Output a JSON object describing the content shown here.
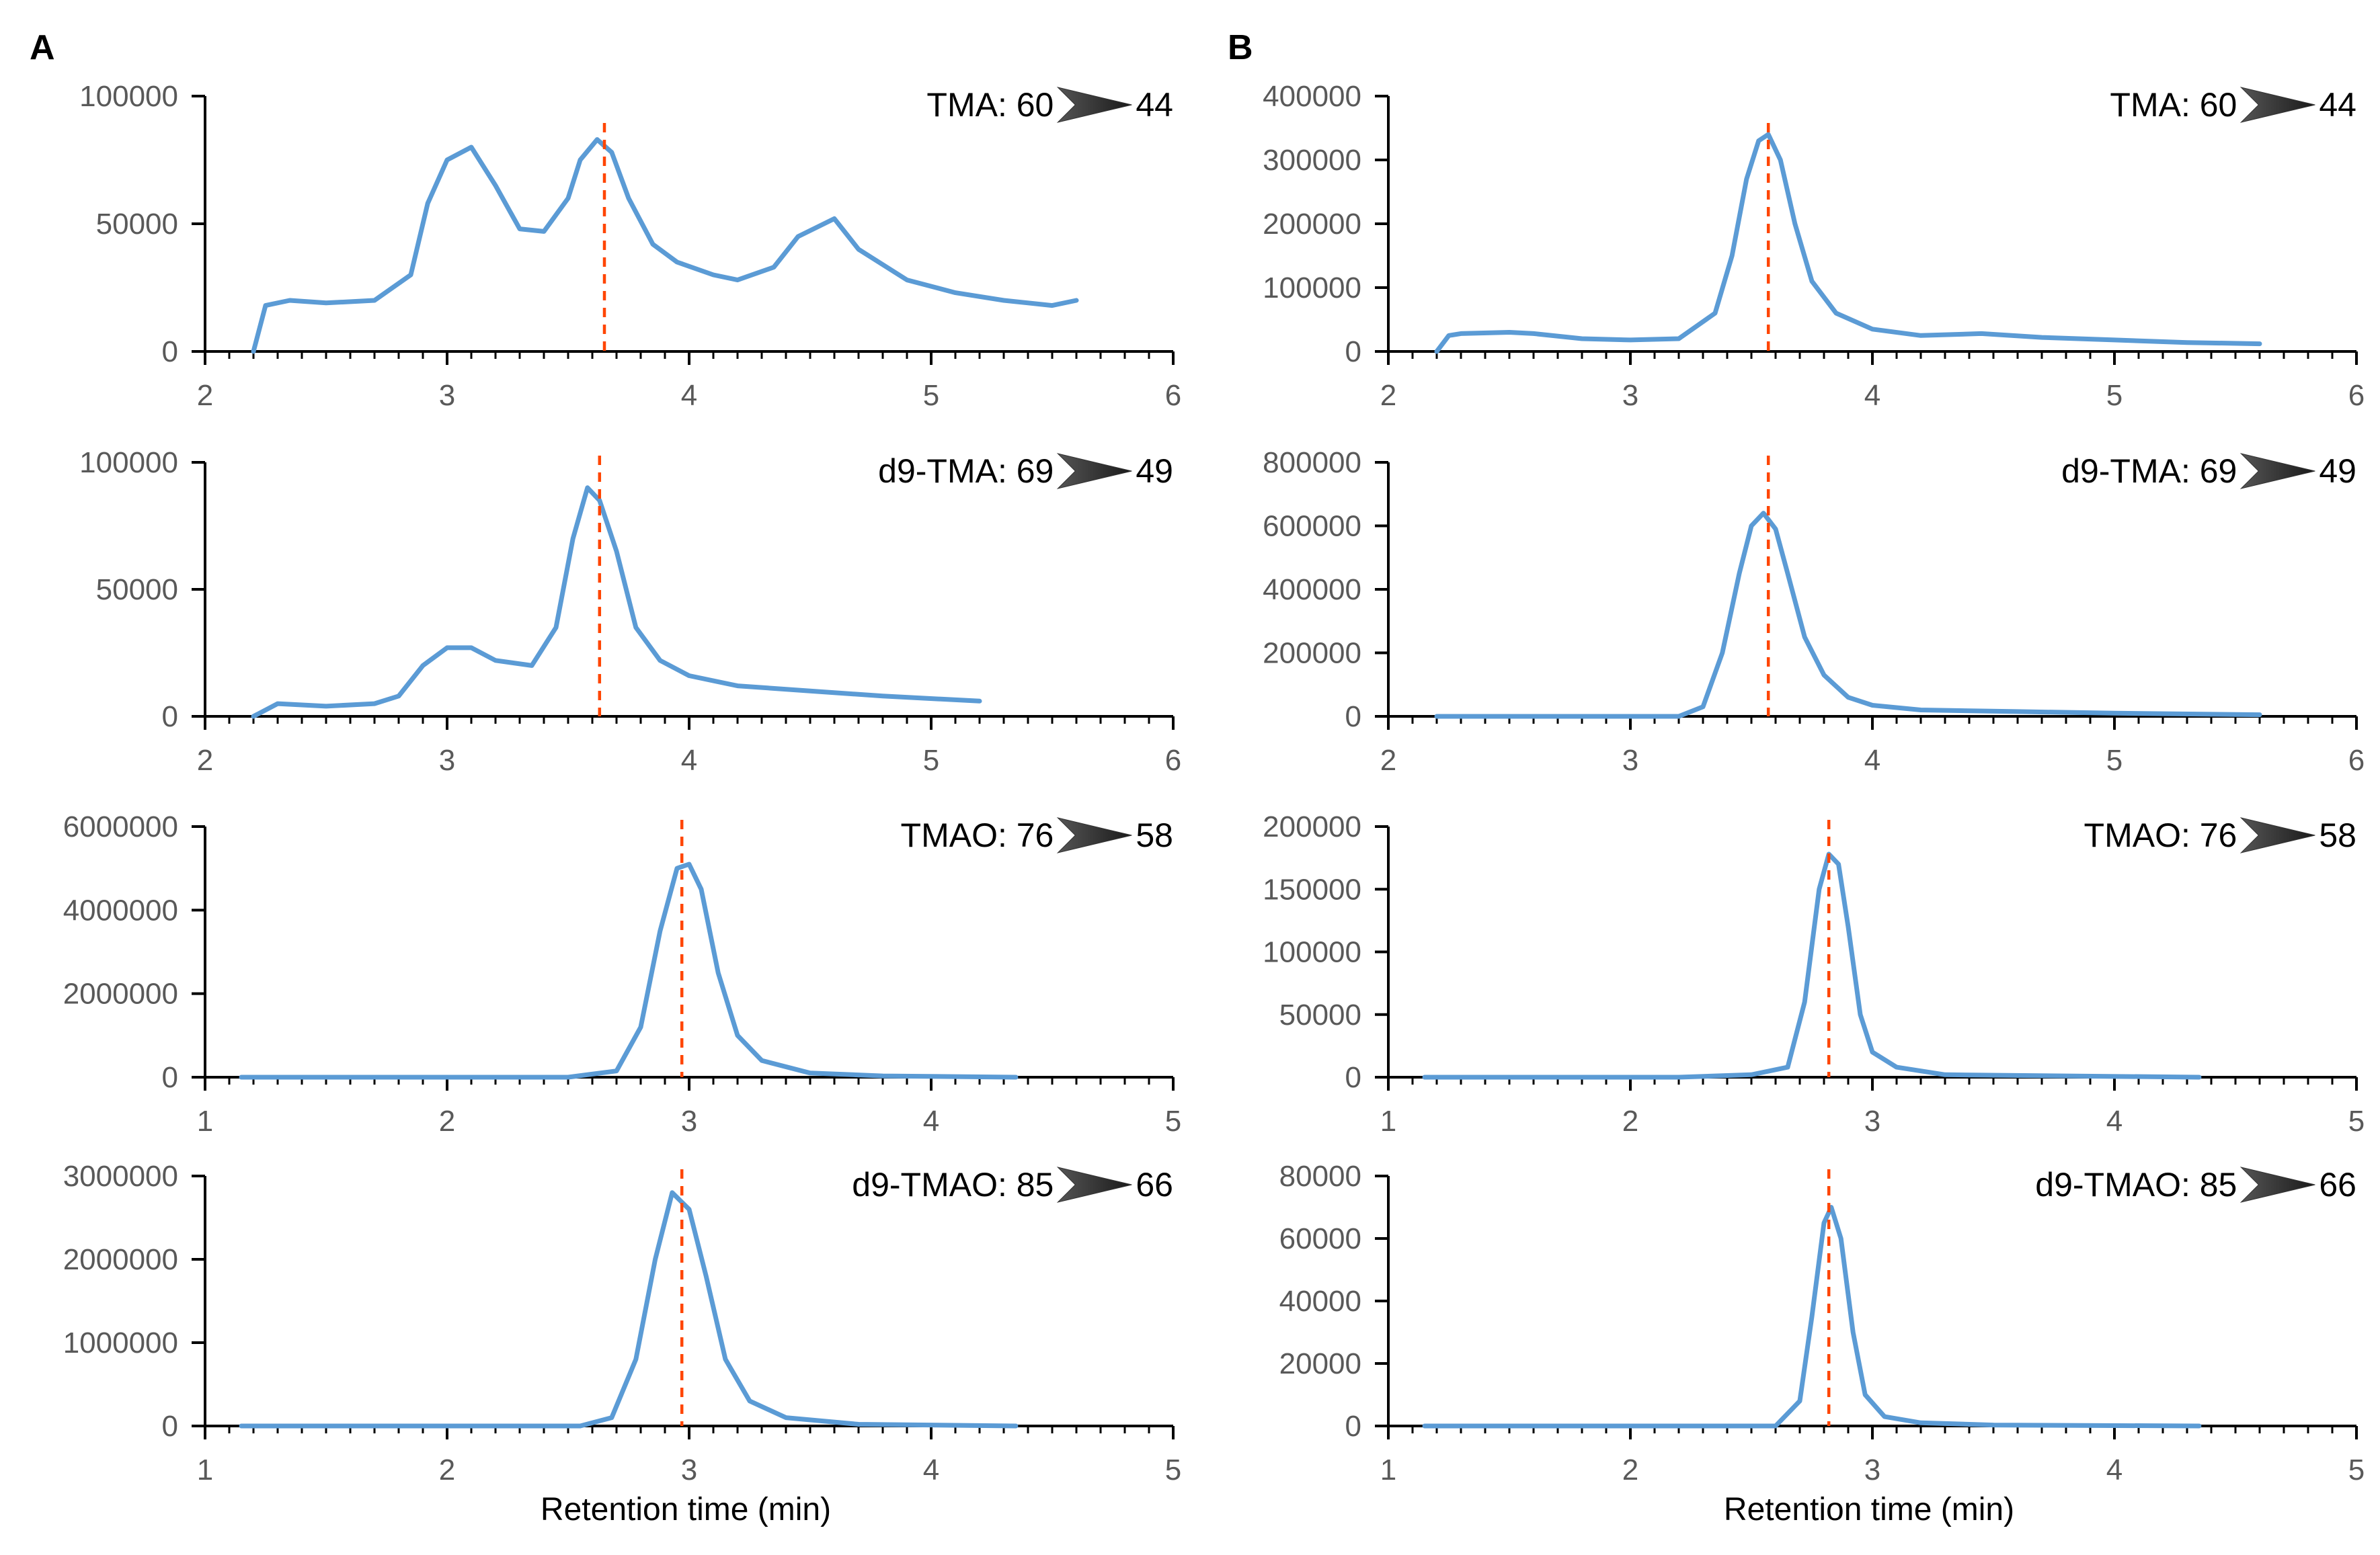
{
  "chart_data": [
    {
      "panel": "A",
      "type": "line",
      "compound": "TMA",
      "transition_label": "TMA: 60",
      "product_ion": "44",
      "xlim": [
        2,
        6
      ],
      "ylim": [
        0,
        100000
      ],
      "xticks": [
        "2",
        "3",
        "4",
        "5",
        "6"
      ],
      "yticks": [
        "0",
        "50000",
        "100000"
      ],
      "retention_time": 3.65,
      "x": [
        2.2,
        2.25,
        2.35,
        2.5,
        2.7,
        2.85,
        2.92,
        3.0,
        3.1,
        3.2,
        3.3,
        3.4,
        3.5,
        3.55,
        3.62,
        3.68,
        3.75,
        3.85,
        3.95,
        4.1,
        4.2,
        4.35,
        4.45,
        4.6,
        4.7,
        4.9,
        5.1,
        5.3,
        5.5,
        5.6
      ],
      "y": [
        0,
        18000,
        20000,
        19000,
        20000,
        30000,
        58000,
        75000,
        80000,
        65000,
        48000,
        47000,
        60000,
        75000,
        83000,
        78000,
        60000,
        42000,
        35000,
        30000,
        28000,
        33000,
        45000,
        52000,
        40000,
        28000,
        23000,
        20000,
        18000,
        20000
      ],
      "series_color": "#5B9BD5",
      "rt_color": "#FF4500"
    },
    {
      "panel": "A",
      "type": "line",
      "compound": "d9-TMA",
      "transition_label": "d9-TMA: 69",
      "product_ion": "49",
      "xlim": [
        2,
        6
      ],
      "ylim": [
        0,
        100000
      ],
      "xticks": [
        "2",
        "3",
        "4",
        "5",
        "6"
      ],
      "yticks": [
        "0",
        "50000",
        "100000"
      ],
      "retention_time": 3.63,
      "x": [
        2.2,
        2.3,
        2.5,
        2.7,
        2.8,
        2.9,
        3.0,
        3.1,
        3.2,
        3.35,
        3.45,
        3.52,
        3.58,
        3.63,
        3.7,
        3.78,
        3.88,
        4.0,
        4.2,
        4.5,
        4.8,
        5.2
      ],
      "y": [
        0,
        5000,
        4000,
        5000,
        8000,
        20000,
        27000,
        27000,
        22000,
        20000,
        35000,
        70000,
        90000,
        85000,
        65000,
        35000,
        22000,
        16000,
        12000,
        10000,
        8000,
        6000
      ],
      "series_color": "#5B9BD5",
      "rt_color": "#FF4500"
    },
    {
      "panel": "A",
      "type": "line",
      "compound": "TMAO",
      "transition_label": "TMAO: 76",
      "product_ion": "58",
      "xlim": [
        1,
        5
      ],
      "ylim": [
        0,
        6000000
      ],
      "xticks": [
        "1",
        "2",
        "3",
        "4",
        "5"
      ],
      "yticks": [
        "0",
        "2000000",
        "4000000",
        "6000000"
      ],
      "retention_time": 2.97,
      "x": [
        1.15,
        2.5,
        2.7,
        2.8,
        2.88,
        2.95,
        3.0,
        3.05,
        3.12,
        3.2,
        3.3,
        3.5,
        3.8,
        4.35
      ],
      "y": [
        0,
        0,
        150000,
        1200000,
        3500000,
        5000000,
        5100000,
        4500000,
        2500000,
        1000000,
        400000,
        100000,
        30000,
        0
      ],
      "series_color": "#5B9BD5",
      "rt_color": "#FF4500"
    },
    {
      "panel": "A",
      "type": "line",
      "compound": "d9-TMAO",
      "transition_label": "d9-TMAO: 85",
      "product_ion": "66",
      "xlim": [
        1,
        5
      ],
      "ylim": [
        0,
        3000000
      ],
      "xticks": [
        "1",
        "2",
        "3",
        "4",
        "5"
      ],
      "yticks": [
        "0",
        "1000000",
        "2000000",
        "3000000"
      ],
      "retention_time": 2.97,
      "x": [
        1.15,
        2.55,
        2.68,
        2.78,
        2.86,
        2.93,
        3.0,
        3.07,
        3.15,
        3.25,
        3.4,
        3.7,
        4.35
      ],
      "y": [
        0,
        0,
        100000,
        800000,
        2000000,
        2800000,
        2600000,
        1800000,
        800000,
        300000,
        100000,
        20000,
        0
      ],
      "series_color": "#5B9BD5",
      "rt_color": "#FF4500"
    },
    {
      "panel": "B",
      "type": "line",
      "compound": "TMA",
      "transition_label": "TMA: 60",
      "product_ion": "44",
      "xlim": [
        2,
        6
      ],
      "ylim": [
        0,
        400000
      ],
      "xticks": [
        "2",
        "3",
        "4",
        "5",
        "6"
      ],
      "yticks": [
        "0",
        "100000",
        "200000",
        "300000",
        "400000"
      ],
      "retention_time": 3.57,
      "x": [
        2.2,
        2.25,
        2.3,
        2.5,
        2.6,
        2.8,
        3.0,
        3.2,
        3.35,
        3.42,
        3.48,
        3.53,
        3.57,
        3.62,
        3.68,
        3.75,
        3.85,
        4.0,
        4.2,
        4.45,
        4.7,
        5.0,
        5.3,
        5.6
      ],
      "y": [
        0,
        25000,
        28000,
        30000,
        28000,
        20000,
        18000,
        20000,
        60000,
        150000,
        270000,
        330000,
        340000,
        300000,
        200000,
        110000,
        60000,
        35000,
        25000,
        28000,
        22000,
        18000,
        14000,
        12000
      ],
      "series_color": "#5B9BD5",
      "rt_color": "#FF4500"
    },
    {
      "panel": "B",
      "type": "line",
      "compound": "d9-TMA",
      "transition_label": "d9-TMA: 69",
      "product_ion": "49",
      "xlim": [
        2,
        6
      ],
      "ylim": [
        0,
        800000
      ],
      "xticks": [
        "2",
        "3",
        "4",
        "5",
        "6"
      ],
      "yticks": [
        "0",
        "200000",
        "400000",
        "600000",
        "800000"
      ],
      "retention_time": 3.57,
      "x": [
        2.2,
        3.2,
        3.3,
        3.38,
        3.45,
        3.5,
        3.55,
        3.6,
        3.65,
        3.72,
        3.8,
        3.9,
        4.0,
        4.2,
        4.6,
        5.0,
        5.6
      ],
      "y": [
        0,
        0,
        30000,
        200000,
        450000,
        600000,
        640000,
        590000,
        450000,
        250000,
        130000,
        60000,
        35000,
        20000,
        15000,
        10000,
        5000
      ],
      "series_color": "#5B9BD5",
      "rt_color": "#FF4500"
    },
    {
      "panel": "B",
      "type": "line",
      "compound": "TMAO",
      "transition_label": "TMAO: 76",
      "product_ion": "58",
      "xlim": [
        1,
        5
      ],
      "ylim": [
        0,
        200000
      ],
      "xticks": [
        "1",
        "2",
        "3",
        "4",
        "5"
      ],
      "yticks": [
        "0",
        "50000",
        "100000",
        "150000",
        "200000"
      ],
      "retention_time": 2.82,
      "x": [
        1.15,
        2.2,
        2.5,
        2.65,
        2.72,
        2.78,
        2.82,
        2.86,
        2.9,
        2.95,
        3.0,
        3.1,
        3.3,
        4.35
      ],
      "y": [
        0,
        0,
        2000,
        8000,
        60000,
        150000,
        178000,
        170000,
        120000,
        50000,
        20000,
        8000,
        2000,
        0
      ],
      "series_color": "#5B9BD5",
      "rt_color": "#FF4500"
    },
    {
      "panel": "B",
      "type": "line",
      "compound": "d9-TMAO",
      "transition_label": "d9-TMAO: 85",
      "product_ion": "66",
      "xlim": [
        1,
        5
      ],
      "ylim": [
        0,
        80000
      ],
      "xticks": [
        "1",
        "2",
        "3",
        "4",
        "5"
      ],
      "yticks": [
        "0",
        "20000",
        "40000",
        "60000",
        "80000"
      ],
      "retention_time": 2.82,
      "x": [
        1.15,
        2.6,
        2.7,
        2.75,
        2.8,
        2.83,
        2.87,
        2.92,
        2.97,
        3.05,
        3.2,
        3.5,
        4.35
      ],
      "y": [
        0,
        0,
        8000,
        35000,
        65000,
        70000,
        60000,
        30000,
        10000,
        3000,
        1000,
        300,
        0
      ],
      "series_color": "#5B9BD5",
      "rt_color": "#FF4500"
    }
  ],
  "panel_labels": [
    "A",
    "B"
  ],
  "xlabel": "Retention time (min)",
  "colors": {
    "trace": "#5B9BD5",
    "retention_line": "#FF4500",
    "axis": "#000000",
    "tick_text": "#595959",
    "arrow": "#333333"
  }
}
